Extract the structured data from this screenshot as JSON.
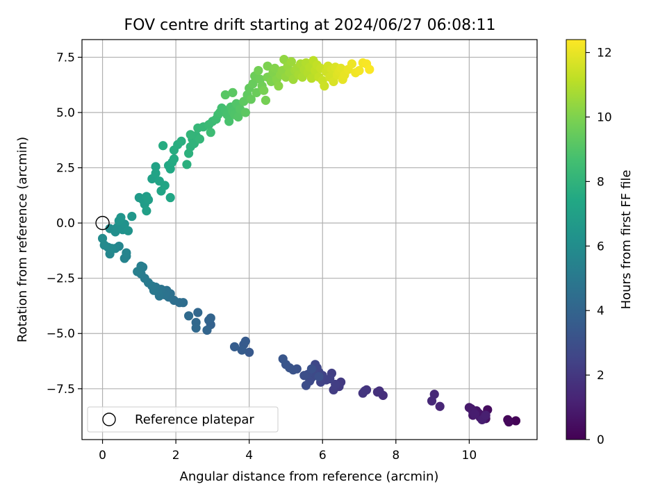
{
  "chart_data": {
    "type": "scatter",
    "title": "FOV centre drift starting at 2024/06/27 06:08:11",
    "xlabel": "Angular distance from reference (arcmin)",
    "ylabel": "Rotation from reference (arcmin)",
    "xlim": [
      -0.56,
      11.85
    ],
    "ylim": [
      -9.8,
      8.3
    ],
    "xticks": [
      0,
      2,
      4,
      6,
      8,
      10
    ],
    "yticks": [
      -7.5,
      -5.0,
      -2.5,
      0.0,
      2.5,
      5.0,
      7.5
    ],
    "xtick_labels": [
      "0",
      "2",
      "4",
      "6",
      "8",
      "10"
    ],
    "ytick_labels": [
      "−7.5",
      "−5.0",
      "−2.5",
      "0.0",
      "2.5",
      "5.0",
      "7.5"
    ],
    "grid": true,
    "colormap": "viridis",
    "colorbar": {
      "label": "Hours from first FF file",
      "range": [
        0,
        12.4
      ],
      "ticks": [
        0,
        2,
        4,
        6,
        8,
        10,
        12
      ],
      "tick_labels": [
        "0",
        "2",
        "4",
        "6",
        "8",
        "10",
        "12"
      ]
    },
    "legend": {
      "placement": "lower-left",
      "entries": [
        "Reference platepar"
      ]
    },
    "reference_point": {
      "x": 0,
      "y": 0
    },
    "points": [
      {
        "x": 11.27,
        "y": -8.95,
        "t": 0.1
      },
      {
        "x": 11.05,
        "y": -8.9,
        "t": 0.2
      },
      {
        "x": 11.08,
        "y": -9.0,
        "t": 0.25
      },
      {
        "x": 10.5,
        "y": -8.45,
        "t": 0.4
      },
      {
        "x": 10.45,
        "y": -8.85,
        "t": 0.5
      },
      {
        "x": 10.35,
        "y": -8.7,
        "t": 0.55
      },
      {
        "x": 10.4,
        "y": -8.85,
        "t": 0.6
      },
      {
        "x": 10.25,
        "y": -8.6,
        "t": 0.65
      },
      {
        "x": 10.3,
        "y": -8.8,
        "t": 0.7
      },
      {
        "x": 10.2,
        "y": -8.5,
        "t": 0.75
      },
      {
        "x": 10.1,
        "y": -8.7,
        "t": 0.8
      },
      {
        "x": 10.05,
        "y": -8.4,
        "t": 0.85
      },
      {
        "x": 10.0,
        "y": -8.35,
        "t": 0.9
      },
      {
        "x": 10.1,
        "y": -8.55,
        "t": 0.95
      },
      {
        "x": 10.15,
        "y": -8.65,
        "t": 1.0
      },
      {
        "x": 10.35,
        "y": -8.9,
        "t": 1.05
      },
      {
        "x": 10.45,
        "y": -8.7,
        "t": 1.1
      },
      {
        "x": 9.2,
        "y": -8.3,
        "t": 1.3
      },
      {
        "x": 9.05,
        "y": -7.75,
        "t": 1.4
      },
      {
        "x": 8.98,
        "y": -8.05,
        "t": 1.45
      },
      {
        "x": 7.65,
        "y": -7.8,
        "t": 1.65
      },
      {
        "x": 7.55,
        "y": -7.6,
        "t": 1.7
      },
      {
        "x": 7.5,
        "y": -7.65,
        "t": 1.75
      },
      {
        "x": 7.2,
        "y": -7.55,
        "t": 1.85
      },
      {
        "x": 7.1,
        "y": -7.7,
        "t": 1.9
      },
      {
        "x": 7.15,
        "y": -7.6,
        "t": 1.95
      },
      {
        "x": 6.5,
        "y": -7.2,
        "t": 2.1
      },
      {
        "x": 6.45,
        "y": -7.4,
        "t": 2.15
      },
      {
        "x": 6.3,
        "y": -7.55,
        "t": 2.2
      },
      {
        "x": 6.35,
        "y": -7.3,
        "t": 2.25
      },
      {
        "x": 6.25,
        "y": -6.8,
        "t": 2.3
      },
      {
        "x": 6.2,
        "y": -7.05,
        "t": 2.35
      },
      {
        "x": 6.1,
        "y": -7.1,
        "t": 2.4
      },
      {
        "x": 6.0,
        "y": -6.9,
        "t": 2.45
      },
      {
        "x": 5.95,
        "y": -7.2,
        "t": 2.5
      },
      {
        "x": 5.9,
        "y": -6.75,
        "t": 2.55
      },
      {
        "x": 5.85,
        "y": -6.55,
        "t": 2.6
      },
      {
        "x": 5.8,
        "y": -6.4,
        "t": 2.65
      },
      {
        "x": 5.75,
        "y": -6.7,
        "t": 2.7
      },
      {
        "x": 5.7,
        "y": -7.0,
        "t": 2.75
      },
      {
        "x": 5.65,
        "y": -7.15,
        "t": 2.8
      },
      {
        "x": 5.6,
        "y": -6.85,
        "t": 2.85
      },
      {
        "x": 5.55,
        "y": -7.35,
        "t": 2.9
      },
      {
        "x": 5.5,
        "y": -6.9,
        "t": 2.95
      },
      {
        "x": 5.9,
        "y": -6.95,
        "t": 3.0
      },
      {
        "x": 5.7,
        "y": -6.6,
        "t": 3.05
      },
      {
        "x": 5.3,
        "y": -6.6,
        "t": 3.1
      },
      {
        "x": 5.2,
        "y": -6.65,
        "t": 3.15
      },
      {
        "x": 5.1,
        "y": -6.55,
        "t": 3.2
      },
      {
        "x": 5.0,
        "y": -6.4,
        "t": 3.25
      },
      {
        "x": 4.92,
        "y": -6.15,
        "t": 3.3
      },
      {
        "x": 4.0,
        "y": -5.85,
        "t": 3.45
      },
      {
        "x": 3.85,
        "y": -5.5,
        "t": 3.5
      },
      {
        "x": 3.9,
        "y": -5.35,
        "t": 3.55
      },
      {
        "x": 3.8,
        "y": -5.75,
        "t": 3.6
      },
      {
        "x": 3.6,
        "y": -5.6,
        "t": 3.65
      },
      {
        "x": 2.95,
        "y": -4.6,
        "t": 3.85
      },
      {
        "x": 2.9,
        "y": -4.4,
        "t": 3.9
      },
      {
        "x": 2.95,
        "y": -4.3,
        "t": 3.95
      },
      {
        "x": 2.85,
        "y": -4.85,
        "t": 4.0
      },
      {
        "x": 2.6,
        "y": -4.05,
        "t": 4.1
      },
      {
        "x": 2.55,
        "y": -4.5,
        "t": 4.15
      },
      {
        "x": 2.55,
        "y": -4.75,
        "t": 4.2
      },
      {
        "x": 2.35,
        "y": -4.2,
        "t": 4.25
      },
      {
        "x": 2.2,
        "y": -3.6,
        "t": 4.4
      },
      {
        "x": 2.1,
        "y": -3.6,
        "t": 4.45
      },
      {
        "x": 1.95,
        "y": -3.5,
        "t": 4.5
      },
      {
        "x": 1.85,
        "y": -3.2,
        "t": 4.55
      },
      {
        "x": 1.8,
        "y": -3.35,
        "t": 4.6
      },
      {
        "x": 1.75,
        "y": -3.05,
        "t": 4.65
      },
      {
        "x": 1.7,
        "y": -3.25,
        "t": 4.7
      },
      {
        "x": 1.6,
        "y": -3.0,
        "t": 4.75
      },
      {
        "x": 1.55,
        "y": -3.3,
        "t": 4.8
      },
      {
        "x": 1.5,
        "y": -3.1,
        "t": 4.85
      },
      {
        "x": 1.45,
        "y": -2.9,
        "t": 4.9
      },
      {
        "x": 1.4,
        "y": -3.05,
        "t": 4.95
      },
      {
        "x": 1.35,
        "y": -2.85,
        "t": 5.0
      },
      {
        "x": 1.25,
        "y": -2.7,
        "t": 5.05
      },
      {
        "x": 1.15,
        "y": -2.5,
        "t": 5.1
      },
      {
        "x": 1.05,
        "y": -2.3,
        "t": 5.15
      },
      {
        "x": 1.1,
        "y": -2.0,
        "t": 5.2
      },
      {
        "x": 1.05,
        "y": -1.95,
        "t": 5.25
      },
      {
        "x": 0.95,
        "y": -2.2,
        "t": 5.3
      },
      {
        "x": 0.65,
        "y": -1.5,
        "t": 5.45
      },
      {
        "x": 0.6,
        "y": -1.6,
        "t": 5.5
      },
      {
        "x": 0.65,
        "y": -1.35,
        "t": 5.55
      },
      {
        "x": 0.45,
        "y": -1.05,
        "t": 5.6
      },
      {
        "x": 0.35,
        "y": -1.15,
        "t": 5.65
      },
      {
        "x": 0.2,
        "y": -1.4,
        "t": 5.7
      },
      {
        "x": 0.15,
        "y": -1.1,
        "t": 5.75
      },
      {
        "x": 0.25,
        "y": -1.15,
        "t": 5.8
      },
      {
        "x": 0.05,
        "y": -1.0,
        "t": 5.85
      },
      {
        "x": 0.0,
        "y": -0.7,
        "t": 5.9
      },
      {
        "x": 0.2,
        "y": -0.25,
        "t": 6.0
      },
      {
        "x": 0.35,
        "y": -0.4,
        "t": 6.05
      },
      {
        "x": 0.4,
        "y": -0.2,
        "t": 6.1
      },
      {
        "x": 0.5,
        "y": -0.1,
        "t": 6.15
      },
      {
        "x": 0.55,
        "y": -0.3,
        "t": 6.2
      },
      {
        "x": 0.6,
        "y": -0.05,
        "t": 6.25
      },
      {
        "x": 0.7,
        "y": -0.35,
        "t": 6.3
      },
      {
        "x": 0.45,
        "y": 0.1,
        "t": 6.35
      },
      {
        "x": 0.5,
        "y": 0.25,
        "t": 6.4
      },
      {
        "x": 0.8,
        "y": 0.3,
        "t": 6.5
      },
      {
        "x": 1.0,
        "y": 1.15,
        "t": 6.7
      },
      {
        "x": 1.1,
        "y": 1.05,
        "t": 6.75
      },
      {
        "x": 1.15,
        "y": 0.85,
        "t": 6.8
      },
      {
        "x": 1.2,
        "y": 1.2,
        "t": 6.85
      },
      {
        "x": 1.25,
        "y": 1.05,
        "t": 6.9
      },
      {
        "x": 1.2,
        "y": 0.55,
        "t": 6.95
      },
      {
        "x": 1.35,
        "y": 2.0,
        "t": 7.05
      },
      {
        "x": 1.45,
        "y": 2.55,
        "t": 7.1
      },
      {
        "x": 1.45,
        "y": 2.25,
        "t": 7.15
      },
      {
        "x": 1.55,
        "y": 1.9,
        "t": 7.2
      },
      {
        "x": 1.6,
        "y": 1.45,
        "t": 7.25
      },
      {
        "x": 1.7,
        "y": 1.7,
        "t": 7.3
      },
      {
        "x": 1.85,
        "y": 1.15,
        "t": 7.35
      },
      {
        "x": 1.8,
        "y": 2.6,
        "t": 7.4
      },
      {
        "x": 1.85,
        "y": 2.45,
        "t": 7.45
      },
      {
        "x": 1.9,
        "y": 2.75,
        "t": 7.5
      },
      {
        "x": 1.95,
        "y": 2.9,
        "t": 7.55
      },
      {
        "x": 1.65,
        "y": 3.5,
        "t": 7.6
      },
      {
        "x": 1.95,
        "y": 3.3,
        "t": 7.65
      },
      {
        "x": 2.05,
        "y": 3.55,
        "t": 7.7
      },
      {
        "x": 2.15,
        "y": 3.7,
        "t": 7.75
      },
      {
        "x": 2.3,
        "y": 2.65,
        "t": 7.8
      },
      {
        "x": 2.35,
        "y": 3.15,
        "t": 7.85
      },
      {
        "x": 2.4,
        "y": 3.45,
        "t": 7.9
      },
      {
        "x": 2.45,
        "y": 3.8,
        "t": 7.95
      },
      {
        "x": 2.5,
        "y": 3.6,
        "t": 8.0
      },
      {
        "x": 2.55,
        "y": 3.95,
        "t": 8.05
      },
      {
        "x": 2.4,
        "y": 4.0,
        "t": 8.1
      },
      {
        "x": 2.65,
        "y": 3.8,
        "t": 8.15
      },
      {
        "x": 2.6,
        "y": 4.3,
        "t": 8.2
      },
      {
        "x": 2.75,
        "y": 4.35,
        "t": 8.25
      },
      {
        "x": 2.9,
        "y": 4.45,
        "t": 8.35
      },
      {
        "x": 3.0,
        "y": 4.6,
        "t": 8.4
      },
      {
        "x": 2.95,
        "y": 4.1,
        "t": 8.45
      },
      {
        "x": 3.1,
        "y": 4.7,
        "t": 8.5
      },
      {
        "x": 3.15,
        "y": 4.9,
        "t": 8.55
      },
      {
        "x": 3.25,
        "y": 5.2,
        "t": 8.6
      },
      {
        "x": 3.2,
        "y": 5.0,
        "t": 8.65
      },
      {
        "x": 3.35,
        "y": 5.1,
        "t": 8.7
      },
      {
        "x": 3.4,
        "y": 4.9,
        "t": 8.75
      },
      {
        "x": 3.45,
        "y": 4.6,
        "t": 8.8
      },
      {
        "x": 3.5,
        "y": 5.25,
        "t": 8.85
      },
      {
        "x": 3.55,
        "y": 5.05,
        "t": 8.9
      },
      {
        "x": 3.6,
        "y": 4.9,
        "t": 8.95
      },
      {
        "x": 3.65,
        "y": 5.4,
        "t": 9.0
      },
      {
        "x": 3.7,
        "y": 4.8,
        "t": 9.05
      },
      {
        "x": 3.75,
        "y": 5.15,
        "t": 9.1
      },
      {
        "x": 3.35,
        "y": 5.8,
        "t": 9.15
      },
      {
        "x": 3.55,
        "y": 5.9,
        "t": 9.2
      },
      {
        "x": 3.9,
        "y": 5.0,
        "t": 9.25
      },
      {
        "x": 3.85,
        "y": 5.5,
        "t": 9.3
      },
      {
        "x": 3.95,
        "y": 5.8,
        "t": 9.35
      },
      {
        "x": 4.0,
        "y": 6.1,
        "t": 9.4
      },
      {
        "x": 4.05,
        "y": 5.6,
        "t": 9.45
      },
      {
        "x": 4.1,
        "y": 6.3,
        "t": 9.5
      },
      {
        "x": 4.2,
        "y": 5.9,
        "t": 9.55
      },
      {
        "x": 4.15,
        "y": 6.65,
        "t": 9.6
      },
      {
        "x": 4.3,
        "y": 6.5,
        "t": 9.65
      },
      {
        "x": 4.35,
        "y": 6.2,
        "t": 9.7
      },
      {
        "x": 4.25,
        "y": 6.9,
        "t": 9.75
      },
      {
        "x": 4.45,
        "y": 5.55,
        "t": 9.8
      },
      {
        "x": 4.4,
        "y": 6.0,
        "t": 9.85
      },
      {
        "x": 4.5,
        "y": 6.6,
        "t": 9.9
      },
      {
        "x": 4.5,
        "y": 7.1,
        "t": 9.95
      },
      {
        "x": 4.6,
        "y": 6.4,
        "t": 10.0
      },
      {
        "x": 4.65,
        "y": 6.8,
        "t": 10.05
      },
      {
        "x": 4.7,
        "y": 7.0,
        "t": 10.1
      },
      {
        "x": 4.75,
        "y": 6.5,
        "t": 10.15
      },
      {
        "x": 4.8,
        "y": 6.2,
        "t": 10.2
      },
      {
        "x": 4.85,
        "y": 6.7,
        "t": 10.25
      },
      {
        "x": 4.9,
        "y": 6.9,
        "t": 10.3
      },
      {
        "x": 4.95,
        "y": 7.4,
        "t": 10.35
      },
      {
        "x": 5.0,
        "y": 6.6,
        "t": 10.4
      },
      {
        "x": 5.05,
        "y": 7.1,
        "t": 10.45
      },
      {
        "x": 5.1,
        "y": 6.8,
        "t": 10.5
      },
      {
        "x": 5.15,
        "y": 7.3,
        "t": 10.55
      },
      {
        "x": 5.2,
        "y": 6.5,
        "t": 10.6
      },
      {
        "x": 5.25,
        "y": 6.9,
        "t": 10.65
      },
      {
        "x": 5.3,
        "y": 7.0,
        "t": 10.7
      },
      {
        "x": 5.35,
        "y": 6.7,
        "t": 10.75
      },
      {
        "x": 5.4,
        "y": 7.2,
        "t": 10.8
      },
      {
        "x": 5.45,
        "y": 6.6,
        "t": 10.85
      },
      {
        "x": 5.5,
        "y": 6.95,
        "t": 10.9
      },
      {
        "x": 5.55,
        "y": 7.25,
        "t": 10.95
      },
      {
        "x": 5.6,
        "y": 6.8,
        "t": 11.0
      },
      {
        "x": 5.65,
        "y": 7.05,
        "t": 11.05
      },
      {
        "x": 5.7,
        "y": 6.55,
        "t": 11.1
      },
      {
        "x": 5.75,
        "y": 7.35,
        "t": 11.15
      },
      {
        "x": 5.8,
        "y": 6.9,
        "t": 11.2
      },
      {
        "x": 5.85,
        "y": 7.15,
        "t": 11.25
      },
      {
        "x": 5.9,
        "y": 6.6,
        "t": 11.3
      },
      {
        "x": 5.95,
        "y": 7.0,
        "t": 11.35
      },
      {
        "x": 6.0,
        "y": 6.45,
        "t": 11.4
      },
      {
        "x": 6.05,
        "y": 6.2,
        "t": 11.45
      },
      {
        "x": 6.1,
        "y": 6.85,
        "t": 11.5
      },
      {
        "x": 6.15,
        "y": 7.1,
        "t": 11.55
      },
      {
        "x": 6.2,
        "y": 6.6,
        "t": 11.6
      },
      {
        "x": 6.25,
        "y": 6.95,
        "t": 11.65
      },
      {
        "x": 6.3,
        "y": 6.4,
        "t": 11.7
      },
      {
        "x": 6.35,
        "y": 7.05,
        "t": 11.75
      },
      {
        "x": 6.4,
        "y": 6.7,
        "t": 11.8
      },
      {
        "x": 6.45,
        "y": 6.85,
        "t": 11.85
      },
      {
        "x": 6.5,
        "y": 7.0,
        "t": 11.9
      },
      {
        "x": 6.55,
        "y": 6.5,
        "t": 11.95
      },
      {
        "x": 6.6,
        "y": 6.7,
        "t": 12.0
      },
      {
        "x": 6.7,
        "y": 6.95,
        "t": 12.05
      },
      {
        "x": 6.8,
        "y": 7.2,
        "t": 12.1
      },
      {
        "x": 6.9,
        "y": 6.8,
        "t": 12.15
      },
      {
        "x": 7.0,
        "y": 6.9,
        "t": 12.2
      },
      {
        "x": 7.1,
        "y": 7.25,
        "t": 12.25
      },
      {
        "x": 7.2,
        "y": 7.2,
        "t": 12.3
      },
      {
        "x": 7.28,
        "y": 6.95,
        "t": 12.35
      }
    ]
  }
}
